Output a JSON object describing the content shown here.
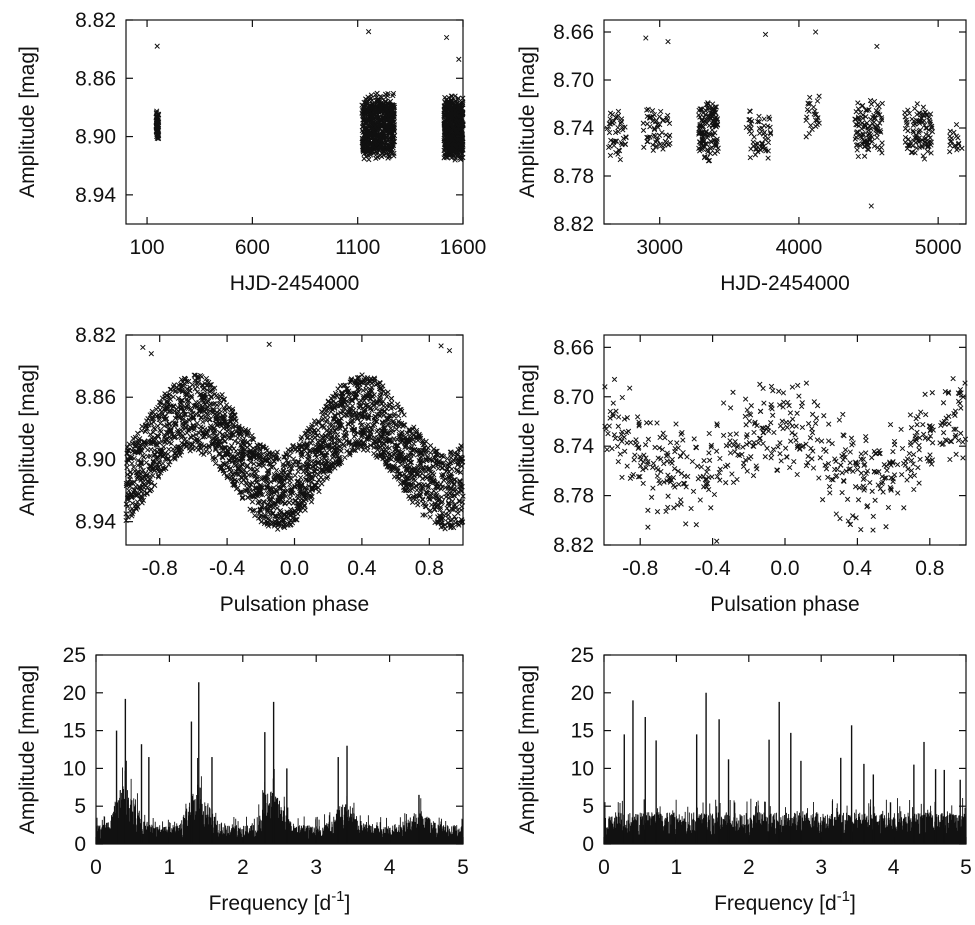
{
  "figure": {
    "panel_count": 6,
    "layout": "3 rows x 2 columns",
    "colors": {
      "foreground": "#111111",
      "background": "#ffffff"
    },
    "marker": "x"
  },
  "chart_data": [
    {
      "id": "light-curve-left",
      "type": "scatter",
      "marker": "x",
      "xlabel": "HJD-2454000",
      "ylabel": "Amplitude [mag]",
      "xlim": [
        0,
        1600
      ],
      "ylim": [
        8.96,
        8.82
      ],
      "y_inverted": true,
      "xticks": [
        100,
        600,
        1100,
        1600
      ],
      "yticks": [
        8.82,
        8.86,
        8.9,
        8.94
      ],
      "xtick_labels": [
        "100",
        "600",
        "1100",
        "1600"
      ],
      "ytick_labels": [
        "8.82",
        "8.86",
        "8.90",
        "8.94"
      ],
      "series": [
        {
          "clusters": [
            {
              "x_range": [
                143,
                155
              ],
              "y_center": 8.892,
              "y_spread": 0.022,
              "points": 70
            },
            {
              "x_range": [
                1120,
                1275
              ],
              "y_center": 8.893,
              "y_spread": 0.048,
              "points": 700
            },
            {
              "x_range": [
                1510,
                1600
              ],
              "y_center": 8.894,
              "y_spread": 0.046,
              "points": 650
            }
          ],
          "outliers": [
            [
              148,
              8.838
            ],
            [
              1152,
              8.828
            ],
            [
              1522,
              8.832
            ],
            [
              1580,
              8.847
            ]
          ]
        }
      ]
    },
    {
      "id": "light-curve-right",
      "type": "scatter",
      "marker": "x",
      "xlabel": "HJD-2454000",
      "ylabel": "Amplitude [mag]",
      "xlim": [
        2600,
        5200
      ],
      "ylim": [
        8.82,
        8.65
      ],
      "y_inverted": true,
      "xticks": [
        3000,
        4000,
        5000
      ],
      "yticks": [
        8.66,
        8.7,
        8.74,
        8.78,
        8.82
      ],
      "xtick_labels": [
        "3000",
        "4000",
        "5000"
      ],
      "ytick_labels": [
        "8.66",
        "8.70",
        "8.74",
        "8.78",
        "8.82"
      ],
      "series": [
        {
          "clusters": [
            {
              "x_range": [
                2620,
                2760
              ],
              "y_center": 8.745,
              "y_spread": 0.045,
              "points": 45
            },
            {
              "x_range": [
                2880,
                3080
              ],
              "y_center": 8.742,
              "y_spread": 0.045,
              "points": 60
            },
            {
              "x_range": [
                3280,
                3420
              ],
              "y_center": 8.742,
              "y_spread": 0.055,
              "points": 130
            },
            {
              "x_range": [
                3620,
                3800
              ],
              "y_center": 8.748,
              "y_spread": 0.045,
              "points": 55
            },
            {
              "x_range": [
                4050,
                4150
              ],
              "y_center": 8.73,
              "y_spread": 0.04,
              "points": 25
            },
            {
              "x_range": [
                4400,
                4600
              ],
              "y_center": 8.74,
              "y_spread": 0.05,
              "points": 110
            },
            {
              "x_range": [
                4760,
                4960
              ],
              "y_center": 8.742,
              "y_spread": 0.048,
              "points": 100
            },
            {
              "x_range": [
                5080,
                5180
              ],
              "y_center": 8.748,
              "y_spread": 0.03,
              "points": 18
            }
          ],
          "outliers": [
            [
              2900,
              8.665
            ],
            [
              3060,
              8.668
            ],
            [
              3760,
              8.662
            ],
            [
              4120,
              8.66
            ],
            [
              4520,
              8.805
            ],
            [
              4560,
              8.672
            ]
          ]
        }
      ]
    },
    {
      "id": "phase-left",
      "type": "scatter",
      "marker": "x",
      "xlabel": "Pulsation phase",
      "ylabel": "Amplitude [mag]",
      "xlim": [
        -1.0,
        1.0
      ],
      "ylim": [
        8.955,
        8.82
      ],
      "y_inverted": true,
      "xticks": [
        -0.8,
        -0.4,
        0.0,
        0.4,
        0.8
      ],
      "yticks": [
        8.82,
        8.86,
        8.9,
        8.94
      ],
      "xtick_labels": [
        "-0.8",
        "-0.4",
        "0.0",
        "0.4",
        "0.8"
      ],
      "ytick_labels": [
        "8.82",
        "8.86",
        "8.90",
        "8.94"
      ],
      "series": [
        {
          "model": "y = 8.895 + 0.025*cos(2*pi*(phase+0.1)) band",
          "mean": 8.895,
          "semi_amplitude": 0.025,
          "phase_offset": 0.1,
          "band_width": 0.05,
          "points": 2600,
          "outliers": [
            [
              -0.9,
              8.828
            ],
            [
              -0.85,
              8.832
            ],
            [
              -0.15,
              8.826
            ],
            [
              0.87,
              8.827
            ],
            [
              0.92,
              8.83
            ]
          ]
        }
      ]
    },
    {
      "id": "phase-right",
      "type": "scatter",
      "marker": "x",
      "xlabel": "Pulsation phase",
      "ylabel": "Amplitude [mag]",
      "xlim": [
        -1.0,
        1.0
      ],
      "ylim": [
        8.82,
        8.65
      ],
      "y_inverted": true,
      "xticks": [
        -0.8,
        -0.4,
        0.0,
        0.4,
        0.8
      ],
      "yticks": [
        8.66,
        8.7,
        8.74,
        8.78,
        8.82
      ],
      "xtick_labels": [
        "-0.8",
        "-0.4",
        "0.0",
        "0.4",
        "0.8"
      ],
      "ytick_labels": [
        "8.66",
        "8.70",
        "8.74",
        "8.78",
        "8.82"
      ],
      "series": [
        {
          "model": "y = 8.745 + 0.022*cos(2*pi*(phase+0.55)) with scatter",
          "mean": 8.745,
          "semi_amplitude": 0.022,
          "phase_offset": 0.55,
          "scatter": 0.055,
          "points": 560
        }
      ]
    },
    {
      "id": "spectrum-left",
      "type": "line",
      "xlabel": "Frequency [d",
      "xlabel_superscript": "-1",
      "xlabel_suffix": "]",
      "ylabel": "Amplitude [mmag]",
      "xlim": [
        0,
        5
      ],
      "ylim": [
        0,
        25
      ],
      "xticks": [
        0,
        1,
        2,
        3,
        4,
        5
      ],
      "yticks": [
        0,
        5,
        10,
        15,
        20,
        25
      ],
      "xtick_labels": [
        "0",
        "1",
        "2",
        "3",
        "4",
        "5"
      ],
      "ytick_labels": [
        "0",
        "5",
        "10",
        "15",
        "20",
        "25"
      ],
      "series": [
        {
          "samples": 1400,
          "noise_floor": 2.5,
          "envelope_humps": [
            {
              "freq": 0.4,
              "height": 5.5,
              "width": 0.35
            },
            {
              "freq": 1.4,
              "height": 5.5,
              "width": 0.35
            },
            {
              "freq": 2.4,
              "height": 4.5,
              "width": 0.35
            },
            {
              "freq": 3.4,
              "height": 3.2,
              "width": 0.35
            },
            {
              "freq": 4.4,
              "height": 1.8,
              "width": 0.35
            }
          ],
          "peaks": [
            [
              0.28,
              15.0
            ],
            [
              0.4,
              19.2
            ],
            [
              0.62,
              13.2
            ],
            [
              0.72,
              11.5
            ],
            [
              1.3,
              16.2
            ],
            [
              1.4,
              21.4
            ],
            [
              1.58,
              11.5
            ],
            [
              2.3,
              14.8
            ],
            [
              2.42,
              18.8
            ],
            [
              2.6,
              10.0
            ],
            [
              3.3,
              11.5
            ],
            [
              3.42,
              13.0
            ],
            [
              4.4,
              6.5
            ]
          ]
        }
      ]
    },
    {
      "id": "spectrum-right",
      "type": "line",
      "xlabel": "Frequency [d",
      "xlabel_superscript": "-1",
      "xlabel_suffix": "]",
      "ylabel": "Amplitude [mmag]",
      "xlim": [
        0,
        5
      ],
      "ylim": [
        0,
        25
      ],
      "xticks": [
        0,
        1,
        2,
        3,
        4,
        5
      ],
      "yticks": [
        0,
        5,
        10,
        15,
        20,
        25
      ],
      "xtick_labels": [
        "0",
        "1",
        "2",
        "3",
        "4",
        "5"
      ],
      "ytick_labels": [
        "0",
        "5",
        "10",
        "15",
        "20",
        "25"
      ],
      "series": [
        {
          "samples": 1400,
          "noise_floor": 4.2,
          "envelope_humps": [],
          "peaks": [
            [
              0.28,
              14.5
            ],
            [
              0.4,
              19.0
            ],
            [
              0.57,
              16.8
            ],
            [
              0.72,
              13.7
            ],
            [
              1.28,
              14.5
            ],
            [
              1.41,
              20.0
            ],
            [
              1.59,
              16.5
            ],
            [
              1.72,
              11.2
            ],
            [
              2.28,
              13.8
            ],
            [
              2.42,
              18.8
            ],
            [
              2.58,
              14.7
            ],
            [
              2.72,
              11.0
            ],
            [
              3.27,
              11.4
            ],
            [
              3.42,
              15.7
            ],
            [
              3.59,
              10.6
            ],
            [
              3.72,
              9.2
            ],
            [
              4.28,
              10.5
            ],
            [
              4.42,
              13.5
            ],
            [
              4.58,
              9.9
            ],
            [
              4.7,
              9.8
            ],
            [
              4.92,
              8.5
            ]
          ]
        }
      ]
    }
  ]
}
